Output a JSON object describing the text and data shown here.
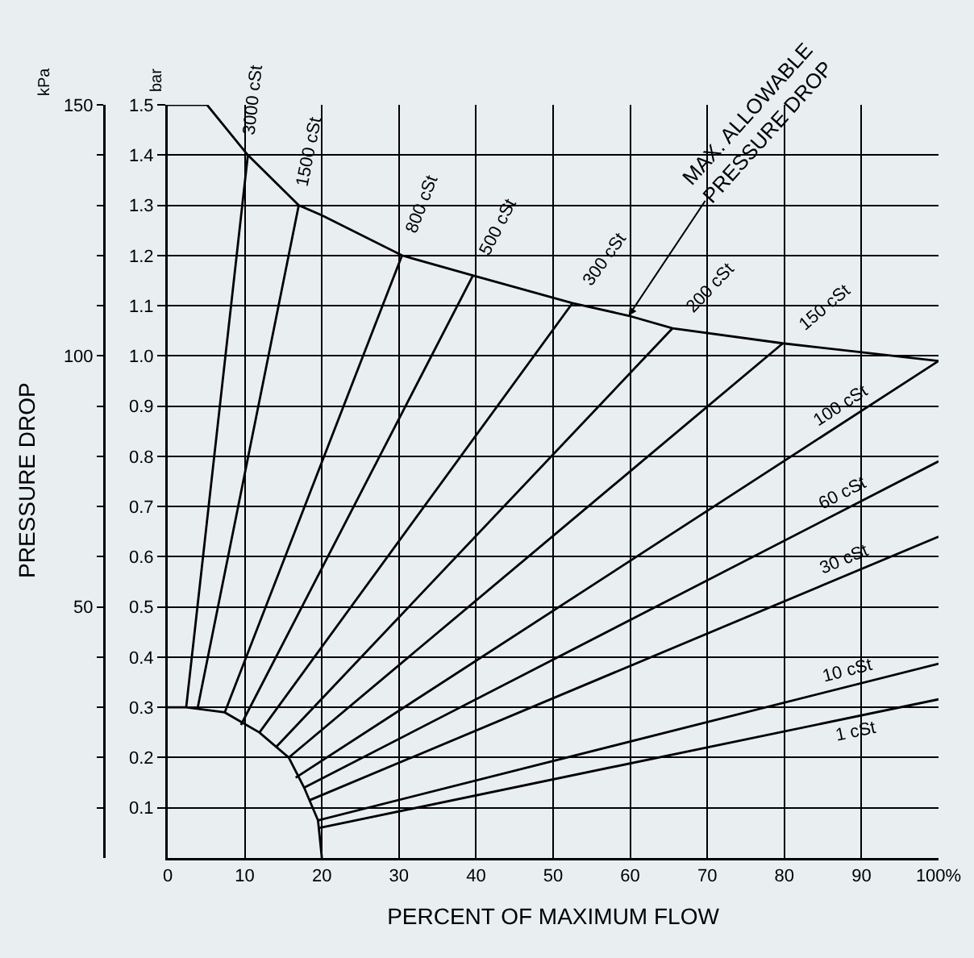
{
  "chart_data": {
    "type": "line",
    "xlabel": "PERCENT OF MAXIMUM FLOW",
    "ylabel": "bar",
    "y2label": "kPa",
    "annotations": [
      "PRESSURE DROP",
      {
        "text": "MAX. ALLOWABLE\nPRESSURE DROP",
        "x": 59.8,
        "y": 1.08
      }
    ],
    "xlim": [
      0,
      100
    ],
    "xticks": [
      0,
      10,
      20,
      30,
      40,
      50,
      60,
      70,
      80,
      90,
      {
        "value": 100,
        "label": "100%"
      }
    ],
    "ylim": [
      0,
      1.5
    ],
    "yticks": [
      0.1,
      0.2,
      0.3,
      0.4,
      0.5,
      0.6,
      0.7,
      0.8,
      0.9,
      {
        "value": 1,
        "label": "1.0"
      },
      1.1,
      1.2,
      1.3,
      1.4,
      1.5
    ],
    "y2lim": [
      0,
      150
    ],
    "y2ticks": [
      {
        "value": 10,
        "label": null
      },
      {
        "value": 20,
        "label": null
      },
      {
        "value": 30,
        "label": null
      },
      {
        "value": 40,
        "label": null
      },
      50,
      {
        "value": 60,
        "label": null
      },
      {
        "value": 70,
        "label": null
      },
      {
        "value": 80,
        "label": null
      },
      {
        "value": 90,
        "label": null
      },
      100,
      {
        "value": 110,
        "label": null
      },
      {
        "value": 120,
        "label": null
      },
      {
        "value": 130,
        "label": null
      },
      {
        "value": 140,
        "label": null
      },
      150
    ],
    "grid": true,
    "marker": "none",
    "line_style": "solid",
    "series": [
      {
        "color": "#000000",
        "x": [
          0,
          5.1,
          10.4,
          17,
          20,
          30.4,
          39.6,
          52.5,
          59.8,
          65.5,
          79.8,
          100
        ],
        "values": [
          1.5,
          1.5,
          1.4,
          1.3,
          1.28,
          1.2,
          1.16,
          1.105,
          1.08,
          1.055,
          1.025,
          0.99
        ]
      },
      {
        "color": "#000000",
        "x": [
          0,
          2.4,
          7.4,
          11.9,
          15.7,
          17.7,
          19.5,
          20
        ],
        "values": [
          0.3,
          0.3,
          0.29,
          0.25,
          0.2,
          0.14,
          0.075,
          0
        ]
      },
      {
        "name": "3000 cSt",
        "color": "#000000",
        "x": [
          2.4,
          10.4
        ],
        "values": [
          0.3,
          1.4
        ]
      },
      {
        "name": "1500 cSt",
        "color": "#000000",
        "x": [
          3.9,
          17
        ],
        "values": [
          0.3,
          1.3
        ]
      },
      {
        "name": "800 cSt",
        "color": "#000000",
        "x": [
          7.4,
          30.4
        ],
        "values": [
          0.29,
          1.2
        ]
      },
      {
        "name": "500 cSt",
        "color": "#000000",
        "x": [
          9.5,
          39.6
        ],
        "values": [
          0.265,
          1.16
        ]
      },
      {
        "name": "300 cSt",
        "color": "#000000",
        "x": [
          11.9,
          52.5
        ],
        "values": [
          0.25,
          1.105
        ]
      },
      {
        "name": "200 cSt",
        "color": "#000000",
        "x": [
          14,
          65.5
        ],
        "values": [
          0.22,
          1.055
        ]
      },
      {
        "name": "150 cSt",
        "color": "#000000",
        "x": [
          15.7,
          79.8
        ],
        "values": [
          0.2,
          1.025
        ]
      },
      {
        "name": "100 cSt",
        "color": "#000000",
        "x": [
          16.6,
          100
        ],
        "values": [
          0.16,
          0.99
        ]
      },
      {
        "name": "60 cSt",
        "color": "#000000",
        "x": [
          17.7,
          100
        ],
        "values": [
          0.14,
          0.79
        ]
      },
      {
        "name": "30 cSt",
        "color": "#000000",
        "x": [
          18.4,
          100
        ],
        "values": [
          0.115,
          0.64
        ]
      },
      {
        "name": "10 cSt",
        "color": "#000000",
        "x": [
          19.5,
          100
        ],
        "values": [
          0.075,
          0.387
        ]
      },
      {
        "name": "1 cSt",
        "color": "#000000",
        "x": [
          19.7,
          100
        ],
        "values": [
          0.06,
          0.316
        ]
      }
    ]
  }
}
